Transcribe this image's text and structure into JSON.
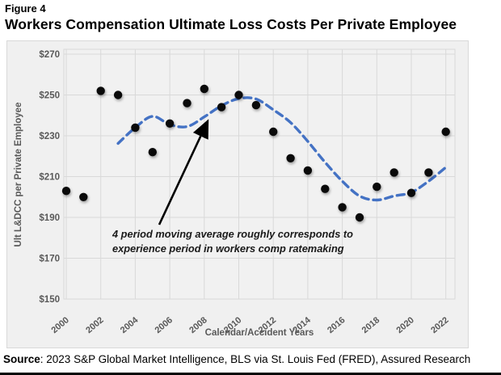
{
  "figure_label": "Figure 4",
  "title": "Workers Compensation Ultimate Loss Costs Per Private Employee",
  "source": {
    "label": "Source",
    "text": ": 2023 S&P Global Market Intelligence, BLS via St. Louis Fed (FRED), Assured Research"
  },
  "chart_data": {
    "type": "scatter",
    "title": "Workers Compensation Ultimate Loss Costs Per Private Employee",
    "xlabel": "Calendar/Accident Years",
    "ylabel": "Ult L&DCC per Private Employee",
    "ylim": [
      150,
      270
    ],
    "y_tick_step": 20,
    "y_tick_prefix": "$",
    "x_ticks": [
      2000,
      2002,
      2004,
      2006,
      2008,
      2010,
      2012,
      2014,
      2016,
      2018,
      2020,
      2022
    ],
    "grid": true,
    "x": [
      2000,
      2001,
      2002,
      2003,
      2004,
      2005,
      2006,
      2007,
      2008,
      2009,
      2010,
      2011,
      2012,
      2013,
      2014,
      2015,
      2016,
      2017,
      2018,
      2019,
      2020,
      2021,
      2022
    ],
    "values": [
      203,
      200,
      252,
      250,
      234,
      222,
      236,
      246,
      253,
      244,
      250,
      245,
      232,
      219,
      213,
      204,
      195,
      190,
      205,
      212,
      202,
      212,
      232
    ],
    "series": [
      {
        "name": "Ultimate loss costs per private employee",
        "style": "scatter-black-dots",
        "x": [
          2000,
          2001,
          2002,
          2003,
          2004,
          2005,
          2006,
          2007,
          2008,
          2009,
          2010,
          2011,
          2012,
          2013,
          2014,
          2015,
          2016,
          2017,
          2018,
          2019,
          2020,
          2021,
          2022
        ],
        "values": [
          203,
          200,
          252,
          250,
          234,
          222,
          236,
          246,
          253,
          244,
          250,
          245,
          232,
          219,
          213,
          204,
          195,
          190,
          205,
          212,
          202,
          212,
          232
        ]
      },
      {
        "name": "4 period moving average",
        "style": "dashed-smooth-line",
        "window": 4,
        "x": [
          2003,
          2004,
          2005,
          2006,
          2007,
          2008,
          2009,
          2010,
          2011,
          2012,
          2013,
          2014,
          2015,
          2016,
          2017,
          2018,
          2019,
          2020,
          2021,
          2022
        ],
        "values": [
          226.25,
          234.0,
          239.5,
          235.5,
          234.5,
          239.25,
          244.75,
          248.25,
          248.0,
          242.75,
          236.5,
          227.25,
          217.0,
          207.75,
          200.5,
          198.5,
          200.5,
          202.25,
          207.75,
          214.5
        ]
      }
    ],
    "annotation": {
      "line1": "4 period moving average roughly corresponds to",
      "line2": "experience period in workers comp ratemaking"
    },
    "colors": {
      "moving_average_line": "#4472c4",
      "data_point": "#0a0a0a",
      "plot_background": "#f1f1f1",
      "gridline": "#d9d9d9",
      "axis_text": "#595959"
    },
    "legend_position": "none"
  }
}
